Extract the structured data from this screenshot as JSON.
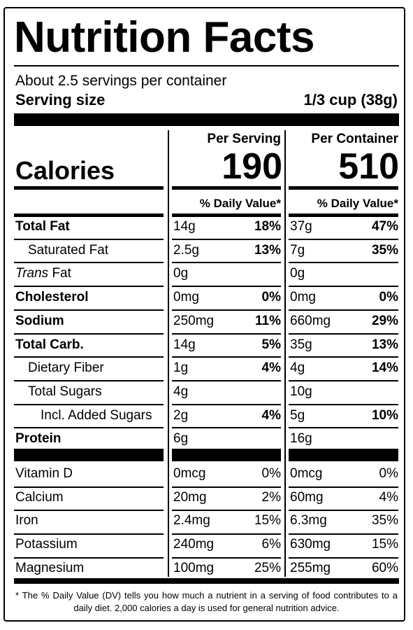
{
  "title": "Nutrition Facts",
  "servings_per_container": "About 2.5 servings per container",
  "serving_size_label": "Serving size",
  "serving_size_value": "1/3 cup (38g)",
  "col_per_serving": "Per Serving",
  "col_per_container": "Per Container",
  "calories_label": "Calories",
  "calories_per_serving": "190",
  "calories_per_container": "510",
  "dv_header": "% Daily Value*",
  "nutrients": [
    {
      "name": "Total Fat",
      "bold": true,
      "serving_amount": "14g",
      "serving_dv": "18%",
      "container_amount": "37g",
      "container_dv": "47%"
    },
    {
      "name": "Saturated Fat",
      "bold": false,
      "serving_amount": "2.5g",
      "serving_dv": "13%",
      "container_amount": "7g",
      "container_dv": "35%"
    },
    {
      "name_italic": "Trans",
      "name_rest": " Fat",
      "bold": false,
      "serving_amount": "0g",
      "serving_dv": "",
      "container_amount": "0g",
      "container_dv": ""
    },
    {
      "name": "Cholesterol",
      "bold": true,
      "serving_amount": "0mg",
      "serving_dv": "0%",
      "container_amount": "0mg",
      "container_dv": "0%"
    },
    {
      "name": "Sodium",
      "bold": true,
      "serving_amount": "250mg",
      "serving_dv": "11%",
      "container_amount": "660mg",
      "container_dv": "29%"
    },
    {
      "name": "Total Carb.",
      "bold": true,
      "serving_amount": "14g",
      "serving_dv": "5%",
      "container_amount": "35g",
      "container_dv": "13%"
    },
    {
      "name": "Dietary Fiber",
      "bold": false,
      "serving_amount": "1g",
      "serving_dv": "4%",
      "container_amount": "4g",
      "container_dv": "14%"
    },
    {
      "name": "Total Sugars",
      "bold": false,
      "serving_amount": "4g",
      "serving_dv": "",
      "container_amount": "10g",
      "container_dv": ""
    },
    {
      "name": "Incl. Added Sugars",
      "bold": false,
      "serving_amount": "2g",
      "serving_dv": "4%",
      "container_amount": "5g",
      "container_dv": "10%"
    },
    {
      "name": "Protein",
      "bold": true,
      "serving_amount": "6g",
      "serving_dv": "",
      "container_amount": "16g",
      "container_dv": ""
    }
  ],
  "vitamins": [
    {
      "name": "Vitamin D",
      "serving_amount": "0mcg",
      "serving_dv": "0%",
      "container_amount": "0mcg",
      "container_dv": "0%"
    },
    {
      "name": "Calcium",
      "serving_amount": "20mg",
      "serving_dv": "2%",
      "container_amount": "60mg",
      "container_dv": "4%"
    },
    {
      "name": "Iron",
      "serving_amount": "2.4mg",
      "serving_dv": "15%",
      "container_amount": "6.3mg",
      "container_dv": "35%"
    },
    {
      "name": "Potassium",
      "serving_amount": "240mg",
      "serving_dv": "6%",
      "container_amount": "630mg",
      "container_dv": "15%"
    },
    {
      "name": "Magnesium",
      "serving_amount": "100mg",
      "serving_dv": "25%",
      "container_amount": "255mg",
      "container_dv": "60%"
    }
  ],
  "footnote": "* The % Daily Value (DV) tells you how much a nutrient in a serving of food contributes to a daily diet. 2,000 calories a day is used for general nutrition advice."
}
